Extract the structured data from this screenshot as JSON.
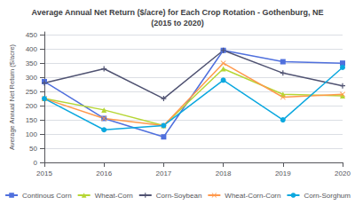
{
  "chart_data": {
    "type": "line",
    "title": "Average Annual Net Return ($/acre) for Each Crop Rotation - Gothenburg, NE\n(2015 to 2020)",
    "ylabel": "Average Annual Net Return ($/acre)",
    "categories": [
      "2015",
      "2016",
      "2017",
      "2018",
      "2019",
      "2020"
    ],
    "series": [
      {
        "name": "Continous Corn",
        "values": [
          285,
          155,
          90,
          395,
          355,
          350
        ],
        "marker": "square",
        "line_style": "solid"
      },
      {
        "name": "Wheat-Corn",
        "values": [
          225,
          185,
          130,
          330,
          240,
          235
        ],
        "marker": "triangle",
        "line_style": "solid"
      },
      {
        "name": "Corn-Soybean",
        "values": [
          280,
          330,
          225,
          395,
          315,
          270
        ],
        "marker": "plus",
        "line_style": "solid"
      },
      {
        "name": "Wheat-Corn-Corn",
        "values": [
          225,
          155,
          130,
          350,
          230,
          240
        ],
        "marker": "x",
        "line_style": "solid"
      },
      {
        "name": "Corn-Sorghum",
        "values": [
          225,
          115,
          130,
          290,
          150,
          335
        ],
        "marker": "circle",
        "line_style": "solid"
      }
    ],
    "ylim": [
      0,
      460
    ],
    "yticks": [
      0,
      50,
      100,
      150,
      200,
      250,
      300,
      350,
      400,
      450
    ],
    "grid": true,
    "legend": "bottom"
  }
}
